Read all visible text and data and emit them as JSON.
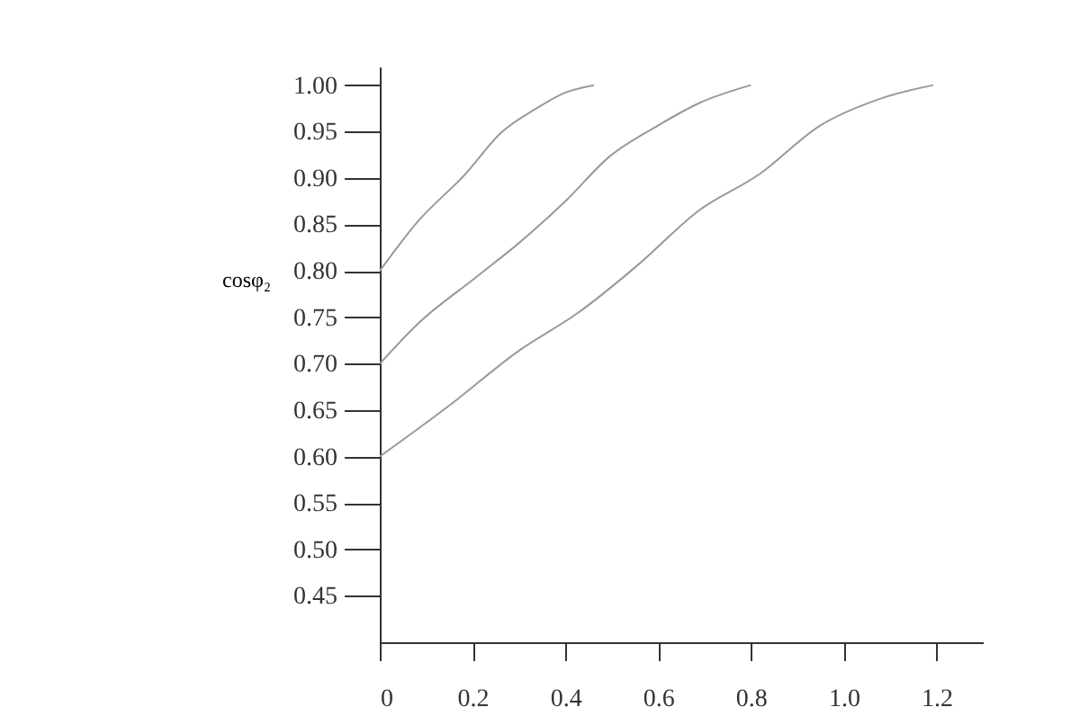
{
  "chart_data": {
    "type": "line",
    "ylabel": "cosφ₂",
    "marker": "none",
    "line_style": "solid",
    "grid": false,
    "legend": false,
    "xlim": [
      0,
      1.3
    ],
    "ylim": [
      0.4,
      1.02
    ],
    "xticks": [
      0,
      0.2,
      0.4,
      0.6,
      0.8,
      {
        "value": 1.0,
        "label": "1.0"
      },
      1.2
    ],
    "yticks": [
      0.45,
      {
        "value": 0.5,
        "label": "0.50"
      },
      0.55,
      {
        "value": 0.6,
        "label": "0.60"
      },
      0.65,
      {
        "value": 0.7,
        "label": "0.70"
      },
      0.75,
      {
        "value": 0.8,
        "label": "0.80"
      },
      0.85,
      {
        "value": 0.9,
        "label": "0.90"
      },
      0.95,
      {
        "value": 1.0,
        "label": "1.00"
      }
    ],
    "series": [
      {
        "color": "#999999",
        "x": [
          0,
          0.08,
          0.184,
          0.262,
          0.338,
          0.4,
          0.462
        ],
        "values": [
          0.8,
          0.852,
          0.904,
          0.949,
          0.975,
          0.992,
          1.0
        ]
      },
      {
        "color": "#999999",
        "x": [
          0,
          0.08,
          0.21,
          0.3,
          0.4,
          0.495,
          0.598,
          0.69,
          0.8
        ],
        "values": [
          0.7,
          0.742,
          0.794,
          0.83,
          0.875,
          0.923,
          0.956,
          0.981,
          1.0
        ]
      },
      {
        "color": "#999999",
        "x": [
          0,
          0.15,
          0.3,
          0.428,
          0.558,
          0.688,
          0.818,
          0.948,
          1.077,
          1.193
        ],
        "values": [
          0.6,
          0.655,
          0.714,
          0.755,
          0.807,
          0.865,
          0.904,
          0.956,
          0.985,
          1.0
        ]
      }
    ]
  }
}
